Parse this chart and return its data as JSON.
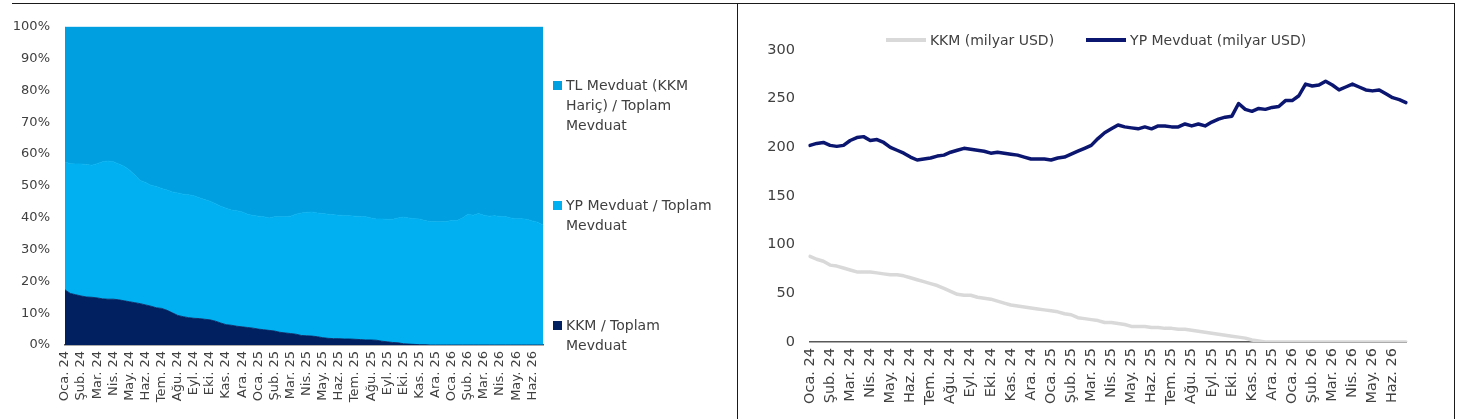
{
  "chart_data": [
    {
      "type": "area",
      "stacked": true,
      "legend": "right",
      "categories": [
        "Oca. 24",
        null,
        null,
        "Şub. 24",
        null,
        null,
        "Mar. 24",
        null,
        null,
        "Nis. 24",
        null,
        null,
        "May. 24",
        null,
        null,
        "Haz. 24",
        null,
        null,
        "Tem. 24",
        null,
        null,
        "Ağu. 24",
        null,
        null,
        "Eyl. 24",
        null,
        null,
        "Eki. 24",
        null,
        null,
        "Kas. 24",
        null,
        null,
        "Ara. 24",
        null,
        null,
        "Oca. 25",
        null,
        null,
        "Şub. 25",
        null,
        null,
        "Mar. 25",
        null,
        null,
        "Nis. 25",
        null,
        null,
        "May. 25",
        null,
        null,
        "Haz. 25",
        null,
        null,
        "Tem. 25",
        null,
        null,
        "Ağu. 25",
        null,
        null,
        "Eyl. 25",
        null,
        null,
        "Eki. 25",
        null,
        null,
        "Kas. 25",
        null,
        null,
        "Ara. 25",
        null,
        null,
        "Oca. 26",
        null,
        null,
        "Şub. 26",
        null,
        null,
        "Mar. 26",
        null,
        null,
        "Nis. 26",
        null,
        null,
        "May. 26",
        null,
        null,
        "Haz. 26",
        null,
        null
      ],
      "series": [
        {
          "name": "KKM / Toplam Mevduat",
          "color": "#002060",
          "values": [
            17.3,
            16.2,
            15.8,
            15.4,
            15.1,
            15.0,
            14.8,
            14.5,
            14.4,
            14.4,
            14.2,
            13.9,
            13.6,
            13.3,
            13.0,
            12.6,
            12.2,
            11.7,
            11.5,
            10.9,
            10.1,
            9.3,
            8.9,
            8.6,
            8.4,
            8.3,
            8.1,
            7.9,
            7.5,
            6.9,
            6.4,
            6.2,
            5.9,
            5.7,
            5.5,
            5.3,
            5.0,
            4.8,
            4.6,
            4.4,
            4.0,
            3.8,
            3.6,
            3.4,
            3.0,
            2.9,
            2.8,
            2.6,
            2.3,
            2.1,
            2.0,
            2.0,
            1.9,
            1.9,
            1.8,
            1.7,
            1.6,
            1.6,
            1.5,
            1.2,
            1.0,
            0.8,
            0.7,
            0.4,
            0.3,
            0.2,
            0.1,
            0.1,
            0,
            0,
            0,
            0,
            0,
            0,
            0,
            0,
            0,
            0,
            0,
            0,
            0,
            0,
            0,
            0,
            0,
            0,
            0,
            0,
            0,
            0
          ]
        },
        {
          "name": "YP Mevduat / Toplam Mevduat",
          "color": "#00b0f0",
          "values": [
            40.2,
            40.8,
            41.1,
            41.5,
            41.6,
            41.5,
            42.2,
            43.1,
            43.4,
            43.2,
            42.7,
            42.3,
            41.4,
            40.1,
            38.7,
            38.5,
            38.0,
            38.1,
            37.7,
            37.8,
            38.0,
            38.5,
            38.5,
            38.6,
            38.5,
            38.0,
            37.6,
            37.3,
            36.9,
            36.7,
            36.6,
            36.2,
            36.3,
            36.1,
            35.6,
            35.4,
            35.5,
            35.5,
            35.3,
            35.9,
            36.3,
            36.5,
            36.9,
            37.7,
            38.5,
            38.8,
            39.0,
            38.9,
            39.0,
            39.0,
            38.9,
            38.8,
            38.8,
            38.7,
            38.7,
            38.7,
            38.7,
            38.3,
            38.1,
            38.4,
            38.5,
            38.7,
            39.2,
            39.8,
            39.6,
            39.5,
            39.5,
            39.0,
            38.8,
            38.7,
            38.7,
            38.8,
            39.1,
            39.1,
            39.9,
            41.1,
            40.8,
            41.3,
            40.8,
            40.5,
            40.6,
            40.4,
            40.4,
            39.9,
            39.7,
            39.7,
            39.5,
            39.0,
            38.6,
            37.7
          ]
        },
        {
          "name": "TL Mevduat (KKM Hariç) / Toplam Mevduat",
          "color": "#00a0e0",
          "values": [
            42.5,
            43.0,
            43.1,
            43.1,
            43.3,
            43.5,
            43.0,
            42.4,
            42.2,
            42.4,
            43.1,
            43.8,
            45.0,
            46.6,
            48.3,
            48.9,
            49.8,
            50.2,
            50.8,
            51.3,
            51.9,
            52.2,
            52.6,
            52.8,
            53.1,
            53.7,
            54.3,
            54.8,
            55.6,
            56.4,
            57.0,
            57.6,
            57.8,
            58.2,
            58.9,
            59.3,
            59.5,
            59.7,
            60.1,
            59.7,
            59.7,
            59.7,
            59.5,
            58.9,
            58.5,
            58.3,
            58.2,
            58.5,
            58.7,
            58.9,
            59.1,
            59.2,
            59.3,
            59.4,
            59.5,
            59.6,
            59.7,
            60.1,
            60.4,
            60.4,
            60.5,
            60.5,
            60.1,
            59.8,
            60.1,
            60.3,
            60.4,
            60.9,
            61.2,
            61.3,
            61.3,
            61.2,
            60.9,
            60.9,
            60.1,
            58.9,
            59.2,
            58.7,
            59.2,
            59.5,
            59.4,
            59.6,
            59.6,
            60.1,
            60.3,
            60.3,
            60.5,
            61.0,
            61.4,
            62.3
          ]
        }
      ],
      "ylim": [
        0,
        100
      ],
      "yticks": [
        {
          "value": 0,
          "label": "0%"
        },
        {
          "value": 10,
          "label": "10%"
        },
        {
          "value": 20,
          "label": "20%"
        },
        {
          "value": 30,
          "label": "30%"
        },
        {
          "value": 40,
          "label": "40%"
        },
        {
          "value": 50,
          "label": "50%"
        },
        {
          "value": 60,
          "label": "60%"
        },
        {
          "value": 70,
          "label": "70%"
        },
        {
          "value": 80,
          "label": "80%"
        },
        {
          "value": 90,
          "label": "90%"
        },
        {
          "value": 100,
          "label": "100%"
        }
      ]
    },
    {
      "type": "line",
      "legend": "top",
      "categories": [
        "Oca. 24",
        null,
        null,
        "Şub. 24",
        null,
        null,
        "Mar. 24",
        null,
        null,
        "Nis. 24",
        null,
        null,
        "May. 24",
        null,
        null,
        "Haz. 24",
        null,
        null,
        "Tem. 24",
        null,
        null,
        "Ağu. 24",
        null,
        null,
        "Eyl. 24",
        null,
        null,
        "Eki. 24",
        null,
        null,
        "Kas. 24",
        null,
        null,
        "Ara. 24",
        null,
        null,
        "Oca. 25",
        null,
        null,
        "Şub. 25",
        null,
        null,
        "Mar. 25",
        null,
        null,
        "Nis. 25",
        null,
        null,
        "May. 25",
        null,
        null,
        "Haz. 25",
        null,
        null,
        "Tem. 25",
        null,
        null,
        "Ağu. 25",
        null,
        null,
        "Eyl. 25",
        null,
        null,
        "Eki. 25",
        null,
        null,
        "Kas. 25",
        null,
        null,
        "Ara. 25",
        null,
        null,
        "Oca. 26",
        null,
        null,
        "Şub. 26",
        null,
        null,
        "Mar. 26",
        null,
        null,
        "Nis. 26",
        null,
        null,
        "May. 26",
        null,
        null,
        "Haz. 26",
        null,
        null
      ],
      "series": [
        {
          "name": "KKM (milyar USD)",
          "color": "#d9d9d9",
          "values": [
            88,
            85,
            83,
            79,
            78,
            76,
            74,
            72,
            72,
            72,
            71,
            70,
            69,
            69,
            68,
            66,
            64,
            62,
            60,
            58,
            55,
            52,
            49,
            48,
            48,
            46,
            45,
            44,
            42,
            40,
            38,
            37,
            36,
            35,
            34,
            33,
            32,
            31,
            29,
            28,
            25,
            24,
            23,
            22,
            20,
            20,
            19,
            18,
            16,
            16,
            16,
            15,
            15,
            14,
            14,
            13,
            13,
            12,
            11,
            10,
            9,
            8,
            7,
            6,
            5,
            4,
            2,
            1,
            0,
            0,
            0,
            0,
            0,
            0,
            0,
            0,
            0,
            0,
            0,
            0,
            0,
            0,
            0,
            0,
            0,
            0,
            0,
            0,
            0,
            0
          ]
        },
        {
          "name": "YP Mevduat (milyar USD)",
          "color": "#0b1670",
          "values": [
            202,
            204,
            205,
            202,
            201,
            202,
            207,
            210,
            211,
            207,
            208,
            205,
            200,
            197,
            194,
            190,
            187,
            188,
            189,
            191,
            192,
            195,
            197,
            199,
            198,
            197,
            196,
            194,
            195,
            194,
            193,
            192,
            190,
            188,
            188,
            188,
            187,
            189,
            190,
            193,
            196,
            199,
            202,
            209,
            215,
            219,
            223,
            221,
            220,
            219,
            221,
            219,
            222,
            222,
            221,
            221,
            224,
            222,
            224,
            222,
            226,
            229,
            231,
            232,
            245,
            239,
            237,
            240,
            239,
            241,
            242,
            248,
            248,
            253,
            265,
            263,
            264,
            268,
            264,
            259,
            262,
            265,
            262,
            259,
            258,
            259,
            255,
            251,
            249,
            246
          ]
        }
      ],
      "ylim": [
        0,
        300
      ],
      "yticks": [
        0,
        50,
        100,
        150,
        200,
        250,
        300
      ]
    }
  ]
}
